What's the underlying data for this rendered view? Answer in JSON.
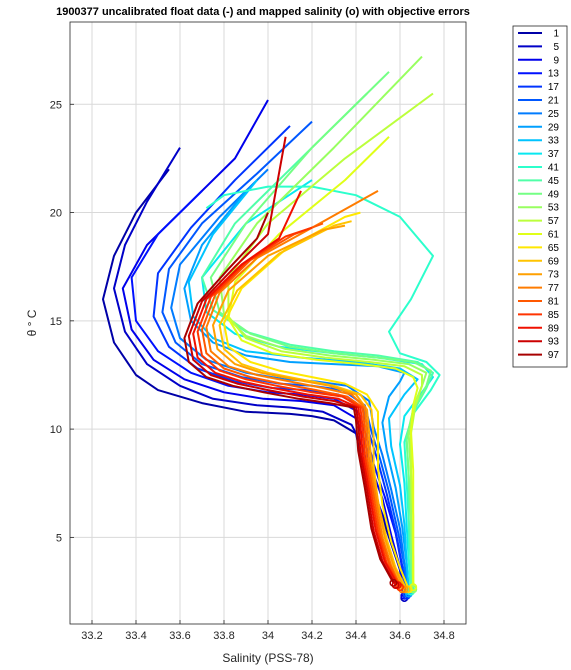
{
  "chart_data": {
    "type": "line",
    "title": "1900377 uncalibrated float data (-) and mapped salinity (o) with objective errors",
    "xlabel": "Salinity (PSS-78)",
    "ylabel": "θ ° C",
    "xlim": [
      33.1,
      34.9
    ],
    "ylim": [
      1.0,
      28.8
    ],
    "xticks": [
      33.2,
      33.4,
      33.6,
      33.8,
      34,
      34.2,
      34.4,
      34.6,
      34.8
    ],
    "xtick_labels": [
      "33.2",
      "33.4",
      "33.6",
      "33.8",
      "34",
      "34.2",
      "34.4",
      "34.6",
      "34.8"
    ],
    "yticks": [
      5,
      10,
      15,
      20,
      25
    ],
    "ytick_labels": [
      "5",
      "10",
      "15",
      "20",
      "25"
    ],
    "grid": true,
    "legend_position": "outside-top-right",
    "colormap": "jet",
    "legend": [
      "1",
      "5",
      "9",
      "13",
      "17",
      "21",
      "25",
      "29",
      "33",
      "37",
      "41",
      "45",
      "49",
      "53",
      "57",
      "61",
      "65",
      "69",
      "73",
      "77",
      "81",
      "85",
      "89",
      "93",
      "97"
    ],
    "legend_colors": [
      "#0000a8",
      "#0000c8",
      "#0000ec",
      "#0010ff",
      "#0034ff",
      "#0058ff",
      "#007cff",
      "#00a0ff",
      "#00c4ff",
      "#08e8f0",
      "#2cffcc",
      "#50ffa8",
      "#74ff84",
      "#98ff60",
      "#bcff3c",
      "#e0ff18",
      "#ffe800",
      "#ffc400",
      "#ffa000",
      "#ff7c00",
      "#ff5800",
      "#ff3400",
      "#f01000",
      "#cc0000",
      "#a80000"
    ],
    "series_profiles": [
      {
        "name": "1",
        "color": "#0000a8",
        "salinity": [
          34.62,
          34.6,
          34.55,
          34.5,
          34.45,
          34.42,
          34.4,
          34.3,
          34.2,
          34.1,
          33.9,
          33.7,
          33.5,
          33.4,
          33.3,
          33.25,
          33.3,
          33.4,
          33.55
        ],
        "theta": [
          2.2,
          3.5,
          5,
          6.5,
          7.8,
          8.8,
          9.8,
          10.4,
          10.6,
          10.7,
          10.8,
          11.2,
          11.8,
          12.5,
          14,
          16,
          18,
          20,
          22
        ]
      },
      {
        "name": "5",
        "color": "#0000c8",
        "salinity": [
          34.62,
          34.6,
          34.56,
          34.5,
          34.46,
          34.43,
          34.38,
          34.25,
          34.1,
          33.95,
          33.75,
          33.6,
          33.45,
          33.35,
          33.3,
          33.35,
          33.45,
          33.6
        ],
        "theta": [
          2.2,
          3.5,
          5,
          6.6,
          8,
          9.2,
          10.2,
          10.8,
          11,
          11.1,
          11.4,
          12,
          13,
          14.5,
          16.5,
          18.5,
          20.5,
          23
        ]
      },
      {
        "name": "9",
        "color": "#0000ec",
        "salinity": [
          34.62,
          34.6,
          34.56,
          34.52,
          34.47,
          34.44,
          34.4,
          34.3,
          34.15,
          33.98,
          33.8,
          33.62,
          33.48,
          33.38,
          33.34,
          33.45,
          33.65,
          33.85,
          34.0
        ],
        "theta": [
          2.3,
          3.6,
          5.1,
          6.8,
          8.2,
          9.4,
          10.5,
          11.1,
          11.3,
          11.4,
          11.7,
          12.3,
          13.2,
          14.6,
          16.5,
          18.5,
          20.5,
          22.5,
          25.2
        ]
      },
      {
        "name": "13",
        "color": "#0010ff",
        "salinity": [
          34.63,
          34.61,
          34.58,
          34.53,
          34.48,
          34.45,
          34.41,
          34.3,
          34.15,
          34.0,
          33.82,
          33.65,
          33.5,
          33.4,
          33.38,
          33.5,
          33.7
        ],
        "theta": [
          2.3,
          3.6,
          5.2,
          6.9,
          8.4,
          9.6,
          10.8,
          11.4,
          11.6,
          11.7,
          12,
          12.6,
          13.6,
          15,
          17,
          19,
          21
        ]
      },
      {
        "name": "17",
        "color": "#0034ff",
        "salinity": [
          34.63,
          34.61,
          34.58,
          34.54,
          34.5,
          34.46,
          34.43,
          34.32,
          34.18,
          34.02,
          33.85,
          33.68,
          33.55,
          33.48,
          33.5,
          33.65,
          33.85,
          34.1
        ],
        "theta": [
          2.3,
          3.7,
          5.3,
          7,
          8.5,
          9.8,
          11,
          11.6,
          11.8,
          11.9,
          12.2,
          12.8,
          13.8,
          15.2,
          17.2,
          19.3,
          21.5,
          24
        ]
      },
      {
        "name": "21",
        "color": "#0058ff",
        "salinity": [
          34.63,
          34.62,
          34.59,
          34.55,
          34.51,
          34.47,
          34.44,
          34.34,
          34.2,
          34.05,
          33.88,
          33.7,
          33.58,
          33.52,
          33.55,
          33.7,
          33.95,
          34.2
        ],
        "theta": [
          2.4,
          3.7,
          5.3,
          7.1,
          8.6,
          9.9,
          11.1,
          11.8,
          12,
          12.1,
          12.4,
          13,
          14,
          15.4,
          17.4,
          19.5,
          21.8,
          24.2
        ]
      },
      {
        "name": "25",
        "color": "#007cff",
        "salinity": [
          34.64,
          34.62,
          34.6,
          34.56,
          34.52,
          34.48,
          34.46,
          34.36,
          34.22,
          34.08,
          33.9,
          33.72,
          33.6,
          33.56,
          33.6,
          33.78,
          34.0
        ],
        "theta": [
          2.4,
          3.8,
          5.4,
          7.2,
          8.8,
          10.1,
          11.3,
          12,
          12.2,
          12.3,
          12.6,
          13.2,
          14.2,
          15.6,
          17.6,
          19.8,
          22
        ]
      },
      {
        "name": "29",
        "color": "#00a0ff",
        "salinity": [
          34.64,
          34.63,
          34.61,
          34.58,
          34.54,
          34.52,
          34.55,
          34.6,
          34.62,
          34.5,
          34.3,
          34.1,
          33.9,
          33.75,
          33.65,
          33.62,
          33.7,
          33.9
        ],
        "theta": [
          2.4,
          3.8,
          5.5,
          7.3,
          9,
          10.3,
          11.5,
          12.2,
          12.6,
          12.9,
          13,
          13.1,
          13.4,
          14,
          15,
          16.5,
          18.5,
          21
        ]
      },
      {
        "name": "33",
        "color": "#00c4ff",
        "salinity": [
          34.64,
          34.63,
          34.62,
          34.6,
          34.56,
          34.55,
          34.62,
          34.68,
          34.6,
          34.4,
          34.15,
          33.9,
          33.75,
          33.66,
          33.64,
          33.75,
          33.95
        ],
        "theta": [
          2.5,
          3.9,
          5.6,
          7.4,
          9.2,
          10.5,
          11.6,
          12.3,
          12.8,
          13.1,
          13.3,
          13.6,
          14.2,
          15.2,
          16.8,
          19,
          21.5
        ]
      },
      {
        "name": "37",
        "color": "#08e8f0",
        "salinity": [
          34.65,
          34.64,
          34.63,
          34.62,
          34.6,
          34.62,
          34.7,
          34.75,
          34.7,
          34.5,
          34.3,
          34.05,
          33.85,
          33.72,
          33.7,
          33.9,
          34.2
        ],
        "theta": [
          2.5,
          3.9,
          5.6,
          7.5,
          9.3,
          10.6,
          11.7,
          12.4,
          13,
          13.3,
          13.5,
          13.8,
          14.4,
          15.4,
          17,
          19.5,
          21.5
        ]
      },
      {
        "name": "41",
        "color": "#2cffcc",
        "salinity": [
          34.65,
          34.64,
          34.64,
          34.63,
          34.62,
          34.66,
          34.74,
          34.78,
          34.72,
          34.6,
          34.55,
          34.65,
          34.75,
          34.6,
          34.4,
          34.2,
          34.0,
          33.8,
          33.72
        ],
        "theta": [
          2.5,
          4,
          5.7,
          7.6,
          9.4,
          10.7,
          11.8,
          12.5,
          13.1,
          13.5,
          14.5,
          16,
          18,
          19.8,
          20.8,
          21.2,
          21.2,
          20.8,
          20.2
        ]
      },
      {
        "name": "45",
        "color": "#50ffa8",
        "salinity": [
          34.65,
          34.65,
          34.64,
          34.64,
          34.63,
          34.66,
          34.72,
          34.75,
          34.68,
          34.5,
          34.3,
          34.1,
          33.9,
          33.75,
          33.7,
          33.85,
          34.15,
          34.45
        ],
        "theta": [
          2.6,
          4,
          5.8,
          7.7,
          9.5,
          10.8,
          11.9,
          12.6,
          13.1,
          13.4,
          13.6,
          13.9,
          14.5,
          15.5,
          17,
          19.5,
          22.5,
          25.5
        ]
      },
      {
        "name": "49",
        "color": "#74ff84",
        "salinity": [
          34.66,
          34.65,
          34.65,
          34.64,
          34.63,
          34.66,
          34.72,
          34.74,
          34.66,
          34.5,
          34.3,
          34.1,
          33.92,
          33.78,
          33.74,
          33.9,
          34.2,
          34.55
        ],
        "theta": [
          2.6,
          4.1,
          5.8,
          7.8,
          9.6,
          10.9,
          12,
          12.7,
          13.1,
          13.3,
          13.5,
          13.8,
          14.4,
          15.4,
          17,
          19.5,
          23,
          26.5
        ]
      },
      {
        "name": "53",
        "color": "#98ff60",
        "salinity": [
          34.66,
          34.66,
          34.65,
          34.65,
          34.64,
          34.66,
          34.7,
          34.72,
          34.64,
          34.48,
          34.28,
          34.08,
          33.9,
          33.8,
          33.78,
          33.95,
          34.3,
          34.7
        ],
        "theta": [
          2.6,
          4.1,
          5.9,
          7.9,
          9.7,
          11,
          12,
          12.6,
          13,
          13.2,
          13.4,
          13.7,
          14.3,
          15.3,
          17,
          19.5,
          23,
          27.2
        ]
      },
      {
        "name": "57",
        "color": "#bcff3c",
        "salinity": [
          34.66,
          34.66,
          34.66,
          34.65,
          34.65,
          34.67,
          34.7,
          34.7,
          34.62,
          34.46,
          34.26,
          34.06,
          33.9,
          33.82,
          33.82,
          34.0,
          34.35,
          34.75
        ],
        "theta": [
          2.7,
          4.2,
          6,
          8,
          9.8,
          11.1,
          12,
          12.5,
          12.9,
          13.1,
          13.3,
          13.6,
          14.2,
          15.2,
          17,
          19.5,
          22.5,
          25.5
        ]
      },
      {
        "name": "61",
        "color": "#e0ff18",
        "salinity": [
          34.66,
          34.66,
          34.66,
          34.66,
          34.65,
          34.66,
          34.68,
          34.66,
          34.58,
          34.42,
          34.22,
          34.02,
          33.88,
          33.82,
          33.85,
          34.05,
          34.35,
          34.55
        ],
        "theta": [
          2.7,
          4.2,
          6,
          8.1,
          9.9,
          11.1,
          11.9,
          12.4,
          12.8,
          13,
          13.2,
          13.5,
          14.1,
          15.1,
          16.8,
          19,
          21.5,
          23.5
        ]
      },
      {
        "name": "65",
        "color": "#ffe800",
        "salinity": [
          34.64,
          34.6,
          34.56,
          34.52,
          34.5,
          34.5,
          34.5,
          34.45,
          34.35,
          34.2,
          34.05,
          33.92,
          33.82,
          33.8,
          33.88,
          34.08,
          34.35,
          34.42
        ],
        "theta": [
          2.6,
          3.6,
          4.8,
          6.5,
          8.2,
          9.6,
          10.8,
          11.6,
          12.1,
          12.4,
          12.7,
          13.1,
          13.8,
          14.9,
          16.5,
          18.3,
          19.8,
          20
        ]
      },
      {
        "name": "69",
        "color": "#ffc400",
        "salinity": [
          34.63,
          34.58,
          34.54,
          34.5,
          34.48,
          34.48,
          34.47,
          34.42,
          34.3,
          34.15,
          34.0,
          33.88,
          33.8,
          33.78,
          33.86,
          34.05,
          34.3,
          34.38
        ],
        "theta": [
          2.6,
          3.6,
          4.9,
          6.6,
          8.3,
          9.7,
          10.9,
          11.6,
          12,
          12.3,
          12.6,
          13,
          13.7,
          14.8,
          16.4,
          18.1,
          19.4,
          19.6
        ]
      },
      {
        "name": "73",
        "color": "#ffa000",
        "salinity": [
          34.62,
          34.57,
          34.53,
          34.5,
          34.47,
          34.46,
          34.45,
          34.4,
          34.28,
          34.12,
          33.97,
          33.85,
          33.77,
          33.75,
          33.82,
          34.0,
          34.25,
          34.35
        ],
        "theta": [
          2.6,
          3.7,
          5,
          6.7,
          8.4,
          9.8,
          10.9,
          11.6,
          12,
          12.3,
          12.6,
          13,
          13.7,
          14.8,
          16.4,
          18,
          19.2,
          19.4
        ]
      },
      {
        "name": "77",
        "color": "#ff7c00",
        "salinity": [
          34.61,
          34.56,
          34.52,
          34.49,
          34.46,
          34.45,
          34.44,
          34.38,
          34.25,
          34.1,
          33.95,
          33.82,
          33.74,
          33.72,
          33.78,
          33.95,
          34.2,
          34.5
        ],
        "theta": [
          2.6,
          3.7,
          5,
          6.8,
          8.5,
          9.9,
          11,
          11.6,
          11.9,
          12.2,
          12.5,
          12.9,
          13.6,
          14.7,
          16.3,
          17.9,
          19.3,
          21
        ]
      },
      {
        "name": "81",
        "color": "#ff5800",
        "salinity": [
          34.6,
          34.55,
          34.51,
          34.48,
          34.45,
          34.44,
          34.43,
          34.36,
          34.22,
          34.06,
          33.92,
          33.8,
          33.72,
          33.7,
          33.76,
          33.92,
          34.12,
          34.25
        ],
        "theta": [
          2.7,
          3.8,
          5.1,
          6.9,
          8.6,
          10,
          11,
          11.5,
          11.8,
          12.1,
          12.4,
          12.8,
          13.5,
          14.6,
          16.2,
          17.8,
          19,
          19.5
        ]
      },
      {
        "name": "85",
        "color": "#ff3400",
        "salinity": [
          34.6,
          34.54,
          34.5,
          34.47,
          34.44,
          34.43,
          34.42,
          34.34,
          34.2,
          34.04,
          33.9,
          33.78,
          33.7,
          33.68,
          33.74,
          33.9,
          34.08,
          34.2
        ],
        "theta": [
          2.7,
          3.8,
          5.2,
          7,
          8.7,
          10.1,
          11,
          11.5,
          11.7,
          12,
          12.3,
          12.7,
          13.4,
          14.5,
          16.1,
          17.7,
          18.9,
          19.3
        ]
      },
      {
        "name": "89",
        "color": "#f01000",
        "salinity": [
          34.59,
          34.53,
          34.49,
          34.46,
          34.43,
          34.42,
          34.41,
          34.32,
          34.18,
          34.02,
          33.88,
          33.76,
          33.68,
          33.66,
          33.72,
          33.88,
          34.05,
          34.15
        ],
        "theta": [
          2.8,
          3.9,
          5.3,
          7.1,
          8.8,
          10.2,
          11,
          11.4,
          11.6,
          11.9,
          12.2,
          12.6,
          13.3,
          14.4,
          16,
          17.6,
          18.8,
          21
        ]
      },
      {
        "name": "93",
        "color": "#cc0000",
        "salinity": [
          34.58,
          34.52,
          34.48,
          34.45,
          34.42,
          34.41,
          34.4,
          34.3,
          34.16,
          34.0,
          33.86,
          33.74,
          33.66,
          33.64,
          33.7,
          33.85,
          34.0,
          34.08
        ],
        "theta": [
          2.8,
          3.9,
          5.3,
          7.2,
          8.9,
          10.3,
          11,
          11.3,
          11.5,
          11.8,
          12.1,
          12.5,
          13.2,
          14.3,
          15.9,
          17.5,
          19,
          23.5
        ]
      },
      {
        "name": "97",
        "color": "#a80000",
        "salinity": [
          34.57,
          34.51,
          34.47,
          34.44,
          34.41,
          34.4,
          34.39,
          34.28,
          34.14,
          33.98,
          33.84,
          33.72,
          33.64,
          33.62,
          33.68,
          33.82,
          33.95,
          34.0
        ],
        "theta": [
          2.9,
          4,
          5.4,
          7.3,
          9,
          10.4,
          11,
          11.2,
          11.4,
          11.7,
          12,
          12.4,
          13.1,
          14.2,
          15.8,
          17.4,
          18.8,
          20
        ]
      }
    ]
  }
}
